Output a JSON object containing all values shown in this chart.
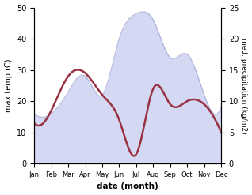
{
  "months": [
    "Jan",
    "Feb",
    "Mar",
    "Apr",
    "May",
    "Jun",
    "Jul",
    "Aug",
    "Sep",
    "Oct",
    "Nov",
    "Dec"
  ],
  "temperature": [
    16,
    16,
    23,
    28,
    22,
    40,
    48,
    46,
    34,
    35,
    22,
    18
  ],
  "precipitation": [
    6.5,
    8.5,
    14,
    14.5,
    11,
    7,
    1.5,
    12,
    9.5,
    10,
    9.5,
    5
  ],
  "temp_fill_color": "#c8ccee",
  "precip_color": "#993344",
  "xlabel": "date (month)",
  "ylabel_left": "max temp (C)",
  "ylabel_right": "med. precipitation (kg/m2)",
  "ylim_left": [
    0,
    50
  ],
  "ylim_right": [
    0,
    25
  ],
  "yticks_left": [
    0,
    10,
    20,
    30,
    40,
    50
  ],
  "yticks_right": [
    0,
    5,
    10,
    15,
    20,
    25
  ]
}
